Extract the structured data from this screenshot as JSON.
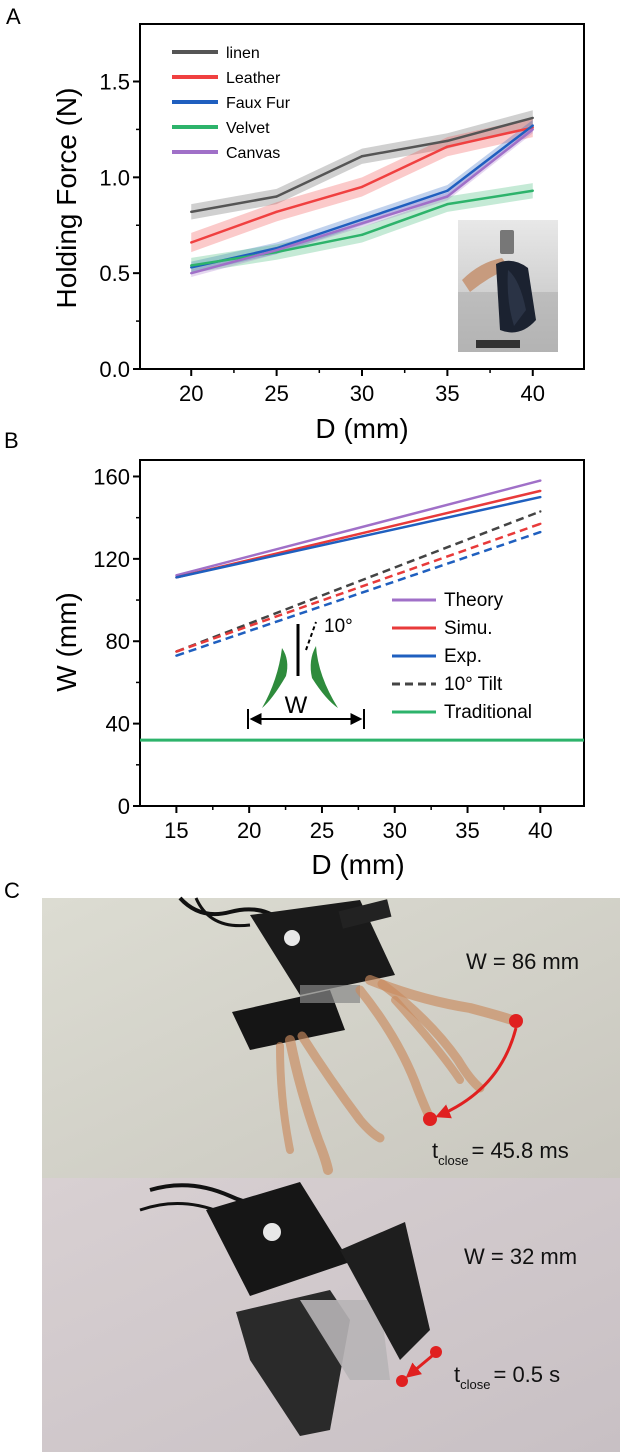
{
  "panels": {
    "a": "A",
    "b": "B",
    "c": "C"
  },
  "chart_data": [
    {
      "type": "line",
      "xlabel": "D (mm)",
      "ylabel": "Holding Force (N)",
      "xlim": [
        17,
        43
      ],
      "ylim": [
        0,
        1.8
      ],
      "xticks": [
        "20",
        "25",
        "30",
        "35",
        "40"
      ],
      "yticks": [
        "0.0",
        "0.5",
        "1.0",
        "1.5"
      ],
      "x": [
        20,
        25,
        30,
        35,
        40
      ],
      "series": [
        {
          "name": "linen",
          "color": "#555555",
          "band": 0.04,
          "values": [
            0.82,
            0.9,
            1.11,
            1.19,
            1.31
          ]
        },
        {
          "name": "Leather",
          "color": "#f04040",
          "band": 0.05,
          "values": [
            0.66,
            0.82,
            0.95,
            1.16,
            1.26
          ]
        },
        {
          "name": "Faux Fur",
          "color": "#1f5fbf",
          "band": 0.03,
          "values": [
            0.53,
            0.63,
            0.78,
            0.93,
            1.27
          ]
        },
        {
          "name": "Velvet",
          "color": "#2db36b",
          "band": 0.04,
          "values": [
            0.54,
            0.61,
            0.7,
            0.86,
            0.93
          ]
        },
        {
          "name": "Canvas",
          "color": "#a070c8",
          "band": 0.02,
          "values": [
            0.5,
            0.62,
            0.76,
            0.9,
            1.25
          ]
        }
      ],
      "legend": "top-left"
    },
    {
      "type": "line",
      "xlabel": "D (mm)",
      "ylabel": "W (mm)",
      "xlim": [
        12.5,
        43
      ],
      "ylim": [
        0,
        168
      ],
      "xticks": [
        "15",
        "20",
        "25",
        "30",
        "35",
        "40"
      ],
      "yticks": [
        "0",
        "40",
        "80",
        "120",
        "160"
      ],
      "x": [
        15,
        40
      ],
      "series": [
        {
          "name": "Theory",
          "color": "#a070c8",
          "dash": false,
          "values": [
            112,
            158
          ]
        },
        {
          "name": "Simu.",
          "color": "#e83a3a",
          "dash": false,
          "values": [
            111,
            153
          ]
        },
        {
          "name": "Exp.",
          "color": "#1f5fbf",
          "dash": false,
          "values": [
            111,
            150
          ]
        },
        {
          "name": "10° Tilt",
          "color": "#444444",
          "dash": true,
          "values": [
            75,
            143
          ]
        },
        {
          "name": "",
          "color": "#e83a3a",
          "dash": true,
          "values": [
            75,
            137
          ]
        },
        {
          "name": "",
          "color": "#1f5fbf",
          "dash": true,
          "values": [
            73,
            133
          ]
        },
        {
          "name": "Traditional",
          "color": "#2db36b",
          "dash": false,
          "values": [
            32,
            32
          ]
        }
      ],
      "legend": "right",
      "inset": {
        "angle_label": "10°",
        "width_label": "W"
      }
    }
  ],
  "photos": {
    "top": {
      "width_text": "W = 86 mm",
      "t_label": "t",
      "t_sub": "close",
      "t_value": "= 45.8 ms"
    },
    "bottom": {
      "width_text": "W = 32 mm",
      "t_label": "t",
      "t_sub": "close",
      "t_value": "= 0.5 s"
    }
  }
}
